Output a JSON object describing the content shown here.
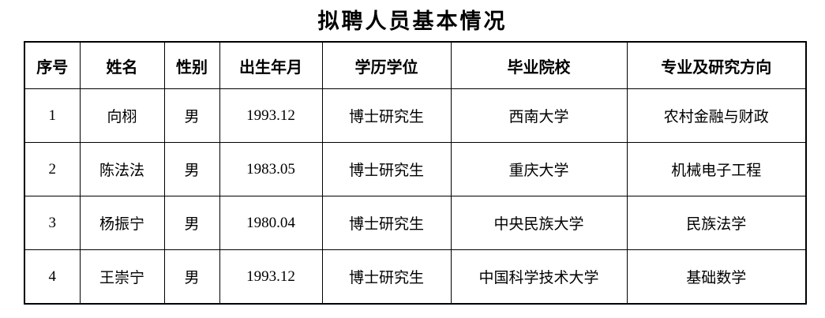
{
  "page": {
    "title": "拟聘人员基本情况",
    "background_color": "#ffffff",
    "border_color": "#000000"
  },
  "table": {
    "headers": [
      "序号",
      "姓名",
      "性别",
      "出生年月",
      "学历学位",
      "毕业院校",
      "专业及研究方向"
    ],
    "rows": [
      [
        "1",
        "向栩",
        "男",
        "1993.12",
        "博士研究生",
        "西南大学",
        "农村金融与财政"
      ],
      [
        "2",
        "陈法法",
        "男",
        "1983.05",
        "博士研究生",
        "重庆大学",
        "机械电子工程"
      ],
      [
        "3",
        "杨振宁",
        "男",
        "1980.04",
        "博士研究生",
        "中央民族大学",
        "民族法学"
      ],
      [
        "4",
        "王崇宁",
        "男",
        "1993.12",
        "博士研究生",
        "中国科学技术大学",
        "基础数学"
      ]
    ]
  }
}
